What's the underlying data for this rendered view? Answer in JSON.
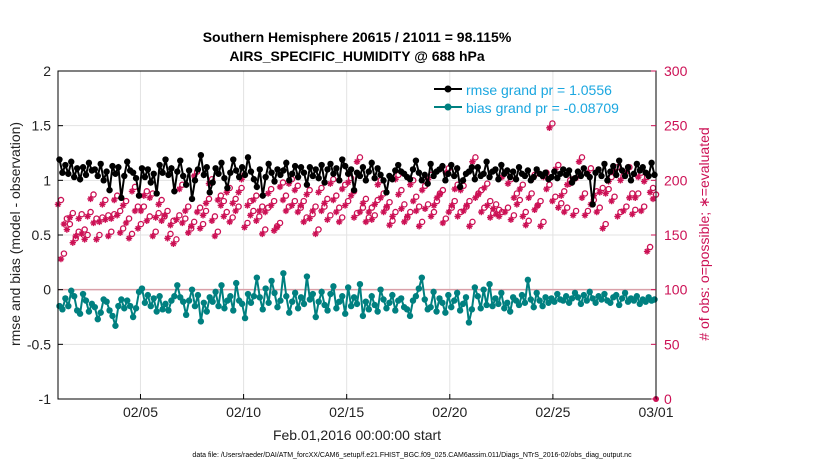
{
  "chart_data": {
    "type": "line",
    "title": "Southern Hemisphere 20615 / 21011 = 98.115%",
    "subtitle": "AIRS_SPECIFIC_HUMIDITY @ 688 hPa",
    "xlabel": "Feb.01,2016 00:00:00 start",
    "ylabel": "rmse and bias (model - observation)",
    "y2label": "# of obs: o=possible; ∗=evaluated",
    "footer": "data file: /Users/raeder/DAI/ATM_forcXX/CAM6_setup/f.e21.FHIST_BGC.f09_025.CAM6assim.011/Diags_NTrS_2016-02/obs_diag_output.nc",
    "xlim": [
      1,
      30
    ],
    "ylim": [
      -1,
      2
    ],
    "y2lim": [
      0,
      300
    ],
    "grid": true,
    "legend_position": "top-right",
    "x_ticks": [
      {
        "value": 5,
        "label": "02/05"
      },
      {
        "value": 10,
        "label": "02/10"
      },
      {
        "value": 15,
        "label": "02/15"
      },
      {
        "value": 20,
        "label": "02/20"
      },
      {
        "value": 25,
        "label": "02/25"
      },
      {
        "value": 30,
        "label": "03/01"
      }
    ],
    "y_ticks": [
      "-1",
      "-0.5",
      "0",
      "0.5",
      "1",
      "1.5",
      "2"
    ],
    "y2_ticks": [
      "0",
      "50",
      "100",
      "150",
      "200",
      "250",
      "300"
    ],
    "series": [
      {
        "name": "rmse grand pr = 1.0556",
        "color": "#000000",
        "axis": "left",
        "values": [
          1.19,
          1.07,
          1.14,
          1.06,
          1.17,
          1.03,
          1.11,
          1.01,
          1.12,
          1.05,
          1.16,
          1.09,
          1.1,
          1.04,
          1.15,
          1.0,
          1.08,
          0.91,
          1.13,
          1.06,
          1.12,
          0.84,
          1.04,
          1.17,
          1.09,
          1.07,
          1.02,
          0.86,
          1.11,
          1.03,
          1.1,
          0.98,
          1.06,
          0.88,
          1.14,
          1.07,
          1.19,
          1.05,
          1.11,
          0.9,
          1.08,
          1.18,
          1.04,
          0.96,
          1.09,
          0.83,
          1.0,
          1.1,
          1.23,
          1.05,
          1.12,
          0.89,
          0.98,
          1.11,
          1.06,
          1.16,
          1.02,
          0.93,
          1.07,
          1.19,
          1.09,
          1.03,
          1.12,
          1.05,
          1.21,
          1.08,
          1.01,
          0.94,
          1.1,
          0.86,
          1.03,
          1.15,
          1.07,
          0.99,
          1.1,
          1.05,
          1.09,
          1.16,
          1.0,
          1.06,
          1.13,
          1.03,
          1.12,
          1.07,
          0.96,
          1.12,
          1.04,
          1.1,
          1.02,
          1.14,
          0.98,
          1.1,
          1.15,
          1.06,
          1.11,
          1.0,
          1.19,
          1.13,
          1.06,
          1.1,
          0.91,
          1.07,
          1.04,
          1.12,
          1.0,
          1.08,
          1.16,
          1.02,
          1.11,
          1.05,
          1.0,
          0.89,
          1.04,
          1.01,
          1.09,
          1.14,
          1.08,
          1.06,
          1.03,
          1.01,
          1.1,
          1.18,
          1.07,
          1.0,
          1.05,
          0.97,
          1.15,
          1.04,
          1.08,
          1.1,
          1.13,
          1.0,
          1.06,
          1.14,
          1.04,
          1.11,
          0.94,
          1.0,
          1.06,
          1.08,
          1.12,
          1.01,
          1.12,
          1.04,
          1.06,
          1.17,
          1.03,
          1.08,
          1.1,
          1.01,
          1.14,
          1.06,
          1.09,
          1.03,
          1.08,
          1.01,
          1.12,
          1.06,
          1.04,
          1.09,
          1.0,
          1.03,
          1.1,
          1.06,
          1.04,
          1.07,
          1.01,
          1.03,
          1.08,
          1.02,
          1.06,
          1.1,
          1.05,
          1.09,
          0.98,
          1.02,
          1.08,
          1.04,
          1.11,
          1.06,
          1.03,
          0.78,
          1.07,
          1.1,
          1.04,
          1.15,
          1.0,
          1.08,
          1.13,
          1.05,
          1.18,
          1.09,
          1.04,
          1.12,
          1.0,
          1.06,
          1.15,
          1.09,
          1.12,
          1.07,
          1.04,
          1.16,
          1.05
        ]
      },
      {
        "name": "bias grand pr = -0.08709",
        "color": "#008080",
        "axis": "left",
        "values": [
          -0.15,
          -0.18,
          -0.08,
          -0.15,
          -0.01,
          -0.06,
          -0.19,
          -0.22,
          -0.04,
          -0.1,
          -0.2,
          -0.13,
          -0.16,
          -0.27,
          -0.21,
          -0.09,
          -0.11,
          -0.19,
          -0.24,
          -0.33,
          -0.15,
          -0.09,
          -0.17,
          -0.1,
          -0.15,
          -0.25,
          -0.17,
          -0.02,
          0.01,
          -0.12,
          -0.05,
          -0.15,
          -0.08,
          -0.2,
          -0.06,
          -0.18,
          -0.13,
          -0.19,
          -0.1,
          -0.06,
          0.04,
          -0.07,
          -0.11,
          -0.23,
          -0.1,
          0.0,
          -0.15,
          -0.05,
          -0.29,
          -0.12,
          -0.2,
          -0.07,
          -0.11,
          -0.02,
          -0.15,
          0.04,
          -0.17,
          -0.1,
          -0.06,
          -0.19,
          0.06,
          -0.1,
          -0.13,
          -0.26,
          -0.04,
          -0.12,
          -0.06,
          0.11,
          -0.07,
          -0.18,
          0.01,
          -0.12,
          0.08,
          -0.03,
          -0.16,
          -0.1,
          0.15,
          -0.06,
          -0.21,
          -0.11,
          -0.03,
          -0.17,
          -0.07,
          -0.13,
          0.12,
          -0.09,
          -0.04,
          -0.25,
          -0.11,
          -0.02,
          -0.14,
          -0.19,
          -0.04,
          0.03,
          -0.17,
          -0.11,
          -0.06,
          -0.22,
          0.02,
          -0.15,
          -0.07,
          -0.13,
          0.05,
          -0.24,
          -0.11,
          -0.18,
          -0.06,
          -0.14,
          -0.2,
          0.0,
          -0.09,
          -0.17,
          -0.12,
          -0.05,
          -0.19,
          -0.1,
          -0.08,
          -0.16,
          -0.18,
          -0.24,
          -0.1,
          -0.06,
          0.01,
          0.11,
          -0.09,
          -0.18,
          -0.16,
          -0.02,
          -0.2,
          -0.08,
          -0.12,
          -0.21,
          -0.05,
          -0.16,
          -0.1,
          -0.03,
          -0.19,
          -0.13,
          -0.07,
          -0.3,
          -0.18,
          0.02,
          -0.06,
          -0.17,
          0.0,
          -0.14,
          0.05,
          -0.15,
          -0.08,
          -0.13,
          -0.03,
          -0.17,
          -0.12,
          -0.2,
          -0.07,
          -0.1,
          -0.14,
          -0.05,
          -0.12,
          0.09,
          -0.09,
          -0.16,
          -0.03,
          -0.1,
          -0.15,
          -0.07,
          -0.12,
          -0.08,
          -0.11,
          -0.04,
          -0.09,
          -0.1,
          -0.06,
          -0.12,
          -0.08,
          -0.03,
          -0.07,
          -0.13,
          -0.05,
          -0.1,
          -0.02,
          -0.08,
          -0.12,
          -0.06,
          -0.09,
          -0.04,
          -0.1,
          -0.12,
          -0.07,
          -0.05,
          -0.14,
          -0.08,
          -0.03,
          -0.11,
          -0.08,
          -0.1,
          -0.06,
          -0.13,
          -0.09,
          -0.11,
          -0.07,
          -0.1,
          -0.09
        ]
      },
      {
        "name": "obs possible",
        "color": "#cc1155",
        "axis": "right",
        "marker": "o",
        "values": [
          182,
          133,
          165,
          160,
          170,
          147,
          153,
          169,
          155,
          150,
          171,
          187,
          165,
          150,
          166,
          182,
          168,
          153,
          169,
          186,
          172,
          156,
          181,
          165,
          151,
          194,
          176,
          160,
          176,
          190,
          167,
          188,
          153,
          170,
          182,
          167,
          172,
          151,
          163,
          146,
          168,
          196,
          165,
          176,
          156,
          162,
          208,
          175,
          160,
          172,
          183,
          201,
          167,
          153,
          186,
          181,
          171,
          193,
          166,
          183,
          176,
          193,
          205,
          161,
          181,
          172,
          186,
          167,
          176,
          155,
          175,
          192,
          181,
          158,
          161,
          198,
          186,
          176,
          201,
          181,
          195,
          175,
          181,
          166,
          191,
          169,
          176,
          155,
          193,
          176,
          183,
          168,
          201,
          186,
          175,
          166,
          196,
          181,
          202,
          190,
          170,
          221,
          175,
          183,
          166,
          175,
          168,
          182,
          200,
          188,
          175,
          180,
          163,
          171,
          205,
          191,
          178,
          166,
          171,
          200,
          185,
          176,
          162,
          195,
          178,
          205,
          171,
          181,
          188,
          191,
          165,
          211,
          175,
          181,
          196,
          171,
          195,
          176,
          181,
          162,
          221,
          188,
          191,
          175,
          197,
          181,
          170,
          178,
          173,
          171,
          207,
          175,
          201,
          168,
          188,
          182,
          196,
          171,
          163,
          188,
          205,
          177,
          181,
          162,
          207,
          196,
          252,
          185,
          214,
          179,
          190,
          175,
          200,
          201,
          172,
          206,
          221,
          188,
          172,
          211,
          182,
          190,
          175,
          193,
          160,
          192,
          203,
          185,
          212,
          171,
          204,
          176,
          212,
          188,
          173,
          188,
          207,
          176,
          203,
          139,
          193,
          187
        ]
      },
      {
        "name": "obs evaluated",
        "color": "#cc1155",
        "axis": "right",
        "marker": "*",
        "values": [
          178,
          128,
          160,
          155,
          166,
          143,
          149,
          165,
          151,
          146,
          167,
          183,
          161,
          146,
          162,
          178,
          164,
          149,
          165,
          182,
          168,
          152,
          177,
          161,
          147,
          190,
          172,
          156,
          172,
          186,
          163,
          184,
          149,
          166,
          178,
          163,
          168,
          147,
          159,
          142,
          164,
          192,
          161,
          172,
          152,
          158,
          204,
          171,
          156,
          168,
          179,
          197,
          163,
          149,
          182,
          177,
          167,
          189,
          162,
          179,
          172,
          189,
          201,
          157,
          177,
          168,
          182,
          163,
          172,
          151,
          171,
          188,
          177,
          154,
          157,
          194,
          182,
          172,
          197,
          177,
          191,
          171,
          177,
          162,
          187,
          165,
          172,
          151,
          189,
          172,
          179,
          164,
          197,
          182,
          171,
          162,
          192,
          177,
          198,
          186,
          166,
          217,
          171,
          179,
          162,
          171,
          164,
          178,
          196,
          184,
          171,
          176,
          159,
          167,
          201,
          187,
          174,
          162,
          167,
          196,
          181,
          172,
          158,
          191,
          174,
          201,
          167,
          177,
          184,
          187,
          161,
          207,
          171,
          177,
          192,
          167,
          191,
          172,
          177,
          158,
          217,
          184,
          187,
          171,
          193,
          177,
          166,
          174,
          169,
          167,
          203,
          171,
          197,
          164,
          184,
          178,
          192,
          167,
          159,
          184,
          201,
          173,
          177,
          158,
          203,
          192,
          248,
          181,
          210,
          175,
          186,
          171,
          196,
          197,
          168,
          202,
          217,
          184,
          168,
          207,
          178,
          186,
          171,
          189,
          156,
          188,
          199,
          181,
          208,
          167,
          200,
          172,
          208,
          184,
          169,
          184,
          203,
          172,
          199,
          135,
          189,
          183
        ]
      }
    ]
  }
}
